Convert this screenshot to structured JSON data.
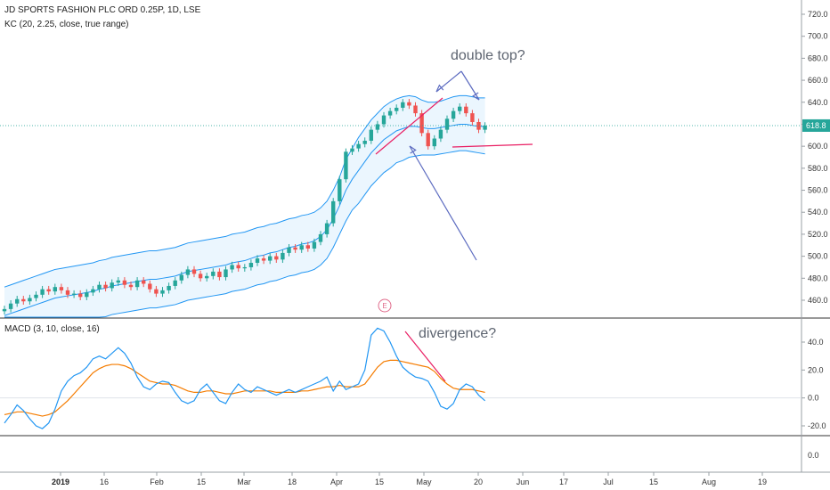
{
  "header": {
    "symbol_line": "JD SPORTS FASHION PLC ORD 0.25P, 1D, LSE",
    "kc_line": "KC (20, 2.25, close, true range)",
    "macd_line": "MACD (3, 10, close, 16)"
  },
  "annotations": {
    "double_top": "double top?",
    "divergence": "divergence?",
    "earnings_marker": "E"
  },
  "colors": {
    "up": "#26a69a",
    "down": "#ef5350",
    "band": "#2196f3",
    "band_fill": "#e3f2fd",
    "macd": "#2196f3",
    "signal": "#f57c00",
    "trendline_magenta": "#e91e63",
    "arrow": "#5c6bc0",
    "price_label": "#26a69a"
  },
  "chart_data": [
    {
      "type": "candlestick",
      "title": "JD SPORTS FASHION PLC ORD 0.25P, 1D, LSE",
      "ylim": [
        440,
        730
      ],
      "y_ticks": [
        "720.0",
        "700.0",
        "680.0",
        "660.0",
        "640.0",
        "620.0",
        "600.0",
        "580.0",
        "560.0",
        "540.0",
        "520.0",
        "500.0",
        "480.0",
        "460.0"
      ],
      "x_ticks": [
        "2019",
        "16",
        "Feb",
        "15",
        "Mar",
        "18",
        "Apr",
        "15",
        "May",
        "20",
        "Jun",
        "17",
        "Jul",
        "15",
        "Aug",
        "19"
      ],
      "last_price": "618.8",
      "close": [
        452,
        457,
        461,
        459,
        462,
        465,
        470,
        468,
        472,
        469,
        465,
        466,
        463,
        467,
        470,
        474,
        471,
        476,
        478,
        474,
        472,
        478,
        475,
        470,
        466,
        469,
        473,
        478,
        483,
        488,
        484,
        480,
        482,
        486,
        481,
        488,
        492,
        489,
        490,
        494,
        498,
        496,
        500,
        497,
        503,
        508,
        506,
        510,
        507,
        513,
        520,
        530,
        550,
        570,
        595,
        598,
        602,
        605,
        615,
        620,
        628,
        632,
        635,
        640,
        637,
        630,
        612,
        600,
        607,
        615,
        625,
        632,
        636,
        630,
        622,
        615,
        618.8
      ],
      "keltner": {
        "upper": [
          472,
          474,
          476,
          478,
          480,
          482,
          484,
          486,
          488,
          489,
          490,
          491,
          492,
          493,
          494,
          496,
          497,
          499,
          500,
          501,
          502,
          503,
          504,
          505,
          505,
          506,
          507,
          508,
          510,
          512,
          513,
          514,
          515,
          516,
          517,
          518,
          520,
          521,
          522,
          524,
          526,
          527,
          529,
          530,
          532,
          534,
          535,
          537,
          538,
          540,
          544,
          550,
          560,
          572,
          588,
          598,
          608,
          616,
          624,
          630,
          636,
          640,
          643,
          645,
          646,
          645,
          642,
          640,
          640,
          641,
          643,
          645,
          646,
          646,
          645,
          644,
          644
        ],
        "middle": [
          446,
          448,
          450,
          452,
          454,
          456,
          458,
          460,
          462,
          463,
          464,
          465,
          466,
          467,
          468,
          470,
          471,
          473,
          474,
          475,
          476,
          477,
          478,
          479,
          479,
          480,
          481,
          482,
          484,
          486,
          487,
          488,
          489,
          490,
          491,
          492,
          494,
          495,
          496,
          498,
          500,
          501,
          503,
          504,
          506,
          508,
          509,
          511,
          512,
          514,
          518,
          524,
          534,
          546,
          560,
          570,
          578,
          586,
          594,
          600,
          606,
          610,
          614,
          616,
          618,
          618,
          617,
          616,
          616,
          617,
          618,
          619,
          620,
          620,
          619,
          618,
          618
        ],
        "lower": [
          420,
          422,
          424,
          426,
          428,
          430,
          432,
          434,
          436,
          437,
          438,
          439,
          440,
          441,
          442,
          444,
          445,
          447,
          448,
          449,
          450,
          451,
          452,
          453,
          453,
          454,
          455,
          456,
          458,
          460,
          461,
          462,
          463,
          464,
          465,
          466,
          468,
          469,
          470,
          472,
          474,
          475,
          477,
          478,
          480,
          482,
          483,
          485,
          486,
          488,
          492,
          498,
          508,
          520,
          532,
          542,
          548,
          556,
          564,
          570,
          576,
          580,
          585,
          587,
          590,
          591,
          592,
          592,
          592,
          593,
          594,
          595,
          596,
          596,
          595,
          594,
          593
        ]
      }
    },
    {
      "type": "line",
      "title": "MACD (3, 10, close, 16)",
      "ylim": [
        -30,
        60
      ],
      "y_ticks": [
        "40.0",
        "20.0",
        "0.0",
        "-20.0"
      ],
      "series": [
        {
          "name": "MACD",
          "values": [
            -18,
            -12,
            -5,
            -9,
            -15,
            -20,
            -22,
            -18,
            -8,
            5,
            12,
            16,
            18,
            22,
            28,
            30,
            28,
            32,
            36,
            32,
            25,
            15,
            8,
            6,
            10,
            12,
            11,
            4,
            -2,
            -4,
            -2,
            6,
            10,
            4,
            -2,
            -4,
            4,
            10,
            6,
            4,
            8,
            6,
            4,
            2,
            4,
            6,
            4,
            6,
            8,
            10,
            12,
            15,
            5,
            12,
            6,
            8,
            10,
            20,
            45,
            50,
            48,
            40,
            30,
            22,
            18,
            15,
            14,
            12,
            4,
            -6,
            -8,
            -4,
            6,
            10,
            8,
            2,
            -2
          ]
        },
        {
          "name": "Signal",
          "values": [
            -12,
            -11,
            -10,
            -10,
            -11,
            -12,
            -13,
            -12,
            -10,
            -6,
            -2,
            3,
            8,
            13,
            18,
            21,
            23,
            24,
            24,
            23,
            21,
            18,
            15,
            12,
            11,
            10,
            10,
            9,
            7,
            5,
            4,
            4,
            5,
            5,
            4,
            3,
            3,
            4,
            5,
            5,
            5,
            5,
            5,
            4,
            4,
            4,
            4,
            5,
            5,
            6,
            7,
            8,
            8,
            9,
            8,
            8,
            8,
            10,
            16,
            22,
            26,
            27,
            27,
            26,
            25,
            24,
            23,
            22,
            19,
            14,
            10,
            7,
            6,
            6,
            6,
            5,
            4
          ]
        }
      ]
    }
  ]
}
